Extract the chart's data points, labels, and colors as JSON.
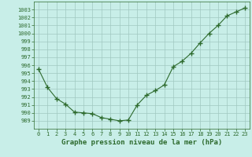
{
  "x": [
    0,
    1,
    2,
    3,
    4,
    5,
    6,
    7,
    8,
    9,
    10,
    11,
    12,
    13,
    14,
    15,
    16,
    17,
    18,
    19,
    20,
    21,
    22,
    23
  ],
  "y": [
    995.5,
    993.2,
    991.8,
    991.1,
    990.1,
    990.0,
    989.9,
    989.4,
    989.2,
    989.0,
    989.1,
    991.0,
    992.2,
    992.8,
    993.5,
    995.8,
    996.5,
    997.5,
    998.8,
    1000.0,
    1001.0,
    1002.2,
    1002.7,
    1003.2
  ],
  "line_color": "#2d6a2d",
  "marker": "+",
  "marker_color": "#2d6a2d",
  "bg_color": "#c8eee8",
  "grid_color": "#a0c8c0",
  "xlabel": "Graphe pression niveau de la mer (hPa)",
  "xlabel_color": "#2d6a2d",
  "tick_color": "#2d6a2d",
  "ylim": [
    988,
    1004
  ],
  "xlim": [
    -0.5,
    23.5
  ],
  "yticks": [
    989,
    990,
    991,
    992,
    993,
    994,
    995,
    996,
    997,
    998,
    999,
    1000,
    1001,
    1002,
    1003
  ],
  "xticks": [
    0,
    1,
    2,
    3,
    4,
    5,
    6,
    7,
    8,
    9,
    10,
    11,
    12,
    13,
    14,
    15,
    16,
    17,
    18,
    19,
    20,
    21,
    22,
    23
  ]
}
